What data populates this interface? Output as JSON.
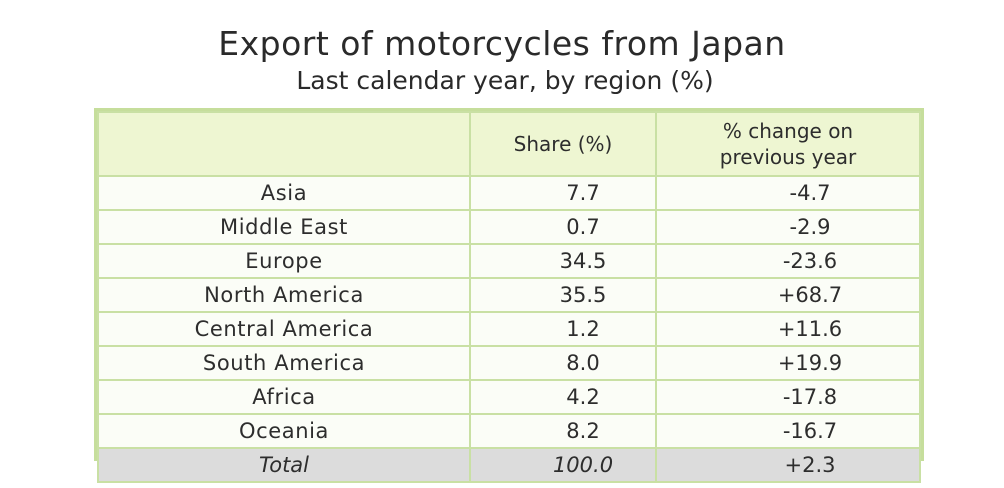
{
  "chart_data": {
    "type": "table",
    "title": "Export of motorcycles from Japan",
    "subtitle": "Last calendar year, by region (%)",
    "columns": [
      "",
      "Share (%)",
      "% change on previous year"
    ],
    "rows": [
      {
        "region": "Asia",
        "share": "7.7",
        "change": "-4.7"
      },
      {
        "region": "Middle East",
        "share": "0.7",
        "change": "-2.9"
      },
      {
        "region": "Europe",
        "share": "34.5",
        "change": "-23.6"
      },
      {
        "region": "North America",
        "share": "35.5",
        "change": "+68.7"
      },
      {
        "region": "Central America",
        "share": "1.2",
        "change": "+11.6"
      },
      {
        "region": "South America",
        "share": "8.0",
        "change": "+19.9"
      },
      {
        "region": "Africa",
        "share": "4.2",
        "change": "-17.8"
      },
      {
        "region": "Oceania",
        "share": "8.2",
        "change": "-16.7"
      }
    ],
    "total": {
      "region": "Total",
      "share": "100.0",
      "change": "+2.3"
    }
  },
  "colors": {
    "border": "#c9e0a4",
    "header_fill": "#eef6d2",
    "total_fill": "#dcdcdc"
  }
}
